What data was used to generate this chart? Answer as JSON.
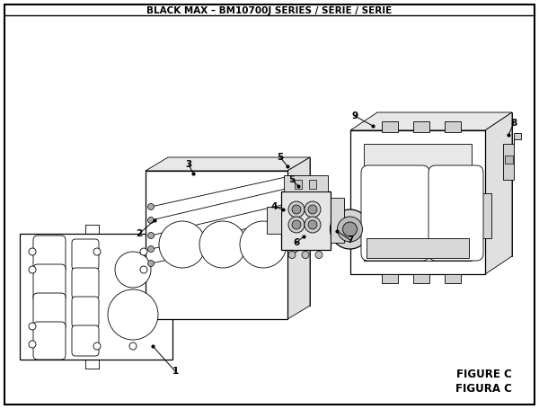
{
  "title": "BLACK MAX – BM10700J SERIES / SÉRIE / SERIE",
  "figure_label": "FIGURE C",
  "figura_label": "FIGURA C",
  "bg_color": "#ffffff",
  "border_color": "#000000",
  "text_color": "#000000",
  "figsize": [
    6.0,
    4.55
  ],
  "dpi": 100,
  "lw_thin": 0.6,
  "lw_med": 0.9,
  "lw_thick": 1.3,
  "part_face": "#f5f5f5",
  "part_edge": "#111111"
}
